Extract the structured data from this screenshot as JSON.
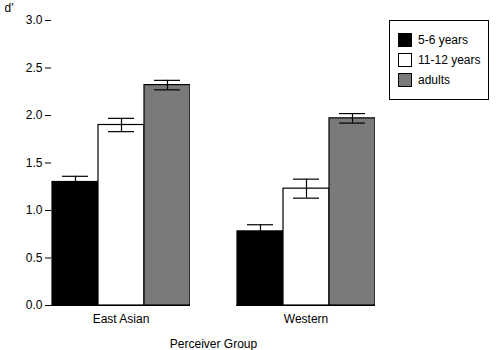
{
  "chart_data": {
    "type": "bar",
    "categories": [
      "East Asian",
      "Western"
    ],
    "series": [
      {
        "name": "5-6 years",
        "color": "#000000",
        "values": [
          1.3,
          0.78
        ],
        "errors": [
          0.06,
          0.07
        ]
      },
      {
        "name": "11-12 years",
        "color": "#ffffff",
        "values": [
          1.9,
          1.23
        ],
        "errors": [
          0.07,
          0.1
        ]
      },
      {
        "name": "adults",
        "color": "#7a7a7a",
        "values": [
          2.32,
          1.97
        ],
        "errors": [
          0.05,
          0.05
        ]
      }
    ],
    "xlabel": "Perceiver Group",
    "ylabel": "d'",
    "ylim": [
      0.0,
      3.0
    ],
    "yticks": [
      {
        "value": 0.0,
        "label": "0.0"
      },
      0.5,
      {
        "value": 1.0,
        "label": "1.0"
      },
      1.5,
      {
        "value": 2.0,
        "label": "2.0"
      },
      2.5,
      {
        "value": 3.0,
        "label": "3.0"
      }
    ],
    "grid": false,
    "legend": "right"
  }
}
